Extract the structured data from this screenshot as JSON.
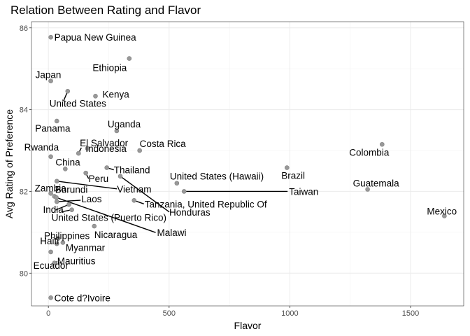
{
  "chart_data": {
    "type": "scatter",
    "title": "Relation Between Rating and Flavor",
    "xlabel": "Flavor",
    "ylabel": "Avg Rating of Preference",
    "xlim": [
      -70,
      1720
    ],
    "ylim": [
      79.2,
      86.15
    ],
    "x_ticks": [
      0,
      500,
      1000,
      1500
    ],
    "y_ticks": [
      80,
      82,
      84,
      86
    ],
    "grid": true,
    "legend": "none",
    "point_color": "#999999",
    "points": [
      {
        "label": "Papua New Guinea",
        "x": 10,
        "y": 85.77
      },
      {
        "label": "Ethiopia",
        "x": 335,
        "y": 85.25
      },
      {
        "label": "Japan",
        "x": 10,
        "y": 84.7
      },
      {
        "label": "United States",
        "x": 80,
        "y": 84.45
      },
      {
        "label": "Kenya",
        "x": 195,
        "y": 84.33
      },
      {
        "label": "Panama",
        "x": 35,
        "y": 83.72
      },
      {
        "label": "Uganda",
        "x": 283,
        "y": 83.48
      },
      {
        "label": "Colombia",
        "x": 1382,
        "y": 83.15
      },
      {
        "label": "El Salvador",
        "x": 162,
        "y": 83.05
      },
      {
        "label": "Costa Rica",
        "x": 378,
        "y": 83.0
      },
      {
        "label": "Indonesia",
        "x": 125,
        "y": 82.93
      },
      {
        "label": "Rwanda",
        "x": 10,
        "y": 82.85
      },
      {
        "label": "China",
        "x": 70,
        "y": 82.55
      },
      {
        "label": "Thailand",
        "x": 242,
        "y": 82.58
      },
      {
        "label": "Brazil",
        "x": 988,
        "y": 82.58
      },
      {
        "label": "Peru",
        "x": 155,
        "y": 82.45
      },
      {
        "label": "United States (Hawaii)",
        "x": 532,
        "y": 82.2
      },
      {
        "label": "Vietnam",
        "x": 35,
        "y": 82.25
      },
      {
        "label": "Guatemala",
        "x": 1322,
        "y": 82.05
      },
      {
        "label": "Taiwan",
        "x": 562,
        "y": 82.0
      },
      {
        "label": "Zambia",
        "x": 10,
        "y": 81.95
      },
      {
        "label": "Honduras",
        "x": 298,
        "y": 82.37
      },
      {
        "label": "Burundi",
        "x": 25,
        "y": 81.88
      },
      {
        "label": "Tanzania, United Republic Of",
        "x": 355,
        "y": 81.78
      },
      {
        "label": "Laos",
        "x": 35,
        "y": 81.75
      },
      {
        "label": "India",
        "x": 85,
        "y": 81.68
      },
      {
        "label": "United States (Puerto Rico)",
        "x": 97,
        "y": 81.55
      },
      {
        "label": "Mexico",
        "x": 1640,
        "y": 81.4
      },
      {
        "label": "Malawi",
        "x": 33,
        "y": 81.85
      },
      {
        "label": "Nicaragua",
        "x": 190,
        "y": 81.15
      },
      {
        "label": "Philippines",
        "x": 40,
        "y": 80.85
      },
      {
        "label": "Myanmar",
        "x": 60,
        "y": 80.75
      },
      {
        "label": "Haiti",
        "x": 35,
        "y": 80.72
      },
      {
        "label": "Mauritius",
        "x": 25,
        "y": 80.25
      },
      {
        "label": "Ecuador",
        "x": 10,
        "y": 80.52
      },
      {
        "label": "Cote d?Ivoire",
        "x": 10,
        "y": 79.4
      }
    ]
  }
}
